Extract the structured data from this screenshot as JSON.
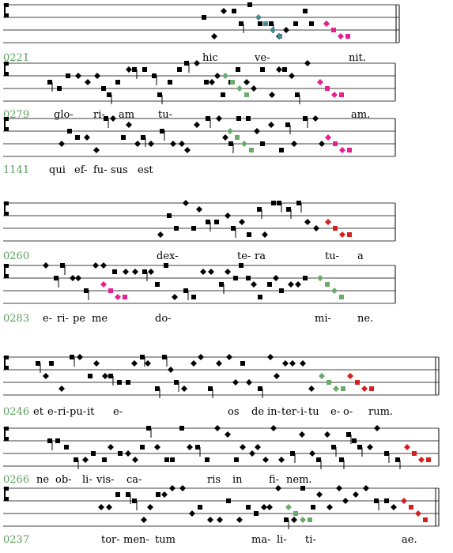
{
  "colors": {
    "ink": "#000000",
    "number": "#5c9e5c",
    "green": "#6aaa6a",
    "teal": "#4a8793",
    "magenta": "#e81f8f",
    "red": "#d42020"
  },
  "systems": [
    {
      "id": "0221",
      "syllables": [
        "hic",
        "ve-",
        "nit."
      ],
      "accents": [
        "teal",
        "green",
        "magenta"
      ]
    },
    {
      "id": "0279",
      "syllables": [
        "glo-",
        "ri-",
        "am",
        "tu-",
        "am."
      ],
      "accents": [
        "green",
        "magenta"
      ]
    },
    {
      "id": "1141",
      "syllables": [
        "qui",
        "ef-",
        "fu-",
        "sus",
        "est"
      ],
      "accents": [
        "green",
        "magenta"
      ]
    },
    {
      "id": "0260",
      "syllables": [
        "dex-",
        "te-",
        "ra",
        "tu-",
        "a"
      ],
      "accents": [
        "red"
      ]
    },
    {
      "id": "0283",
      "syllables": [
        "e-",
        "ri-",
        "pe",
        "me",
        "do-",
        "mi-",
        "ne."
      ],
      "accents": [
        "magenta",
        "green"
      ]
    },
    {
      "id": "0246",
      "syllables": [
        "et",
        "e-",
        "ri-",
        "pu-",
        "it",
        "e-",
        "os",
        "de",
        "in-",
        "ter-",
        "i-",
        "tu",
        "e-",
        "o-",
        "rum."
      ],
      "accents": [
        "green",
        "red"
      ]
    },
    {
      "id": "0266",
      "syllables": [
        "ne",
        "ob-",
        "li-",
        "vis-",
        "ca-",
        "ris",
        "in",
        "fi-",
        "nem."
      ],
      "accents": [
        "red"
      ]
    },
    {
      "id": "0237",
      "syllables": [
        "tor-",
        "men-",
        "tum",
        "ma-",
        "li-",
        "ti-",
        "ae."
      ],
      "accents": [
        "green",
        "red"
      ]
    }
  ]
}
